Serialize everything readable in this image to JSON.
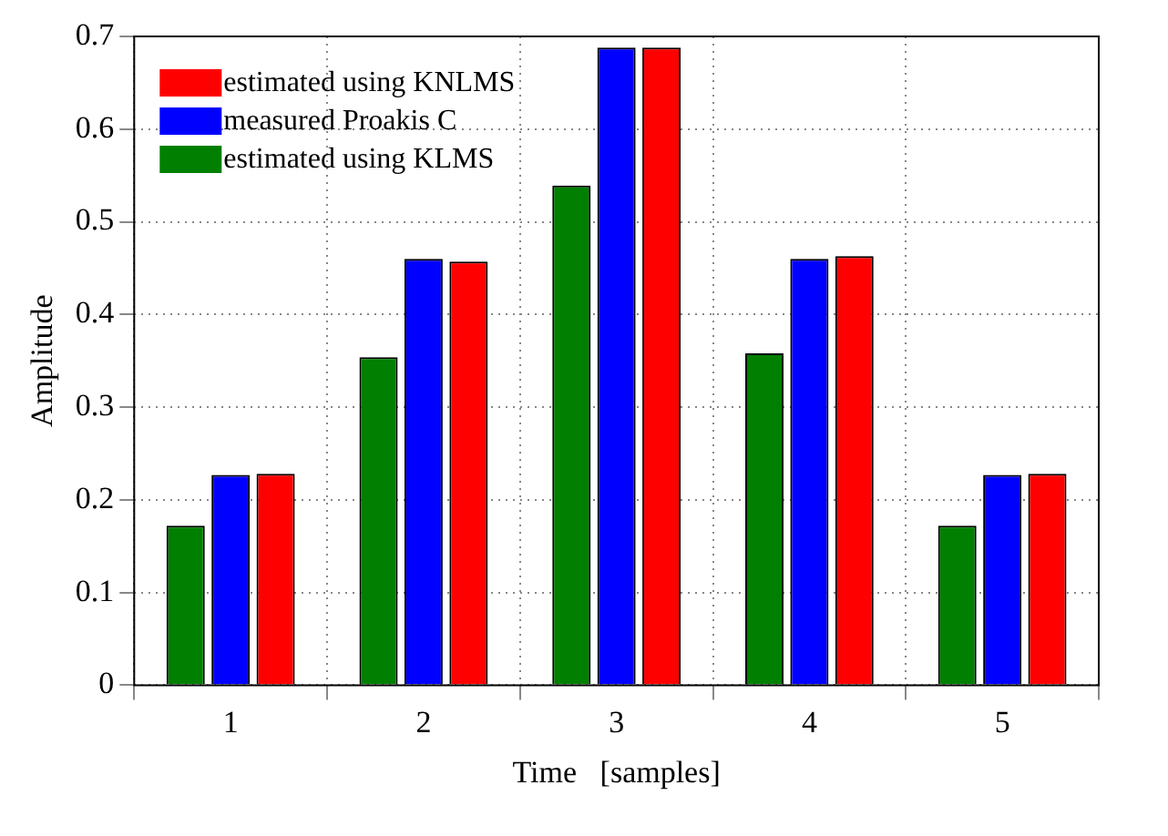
{
  "chart_data": {
    "type": "bar",
    "xlabel": "Time   [samples]",
    "ylabel": "Amplitude",
    "categories": [
      "1",
      "2",
      "3",
      "4",
      "5"
    ],
    "series": [
      {
        "name": "estimated using KLMS",
        "color": "#007f00",
        "values": [
          0.172,
          0.354,
          0.539,
          0.358,
          0.172
        ]
      },
      {
        "name": "measured Proakis C",
        "color": "#0000ff",
        "values": [
          0.227,
          0.46,
          0.688,
          0.46,
          0.227
        ]
      },
      {
        "name": "estimated using KNLMS",
        "color": "#ff0000",
        "values": [
          0.228,
          0.457,
          0.688,
          0.463,
          0.228
        ]
      }
    ],
    "ylim": [
      0,
      0.7
    ],
    "yticks": [
      0,
      0.1,
      0.2,
      0.3,
      0.4,
      0.5,
      0.6,
      0.7
    ],
    "grid": true,
    "legend": "top left"
  }
}
